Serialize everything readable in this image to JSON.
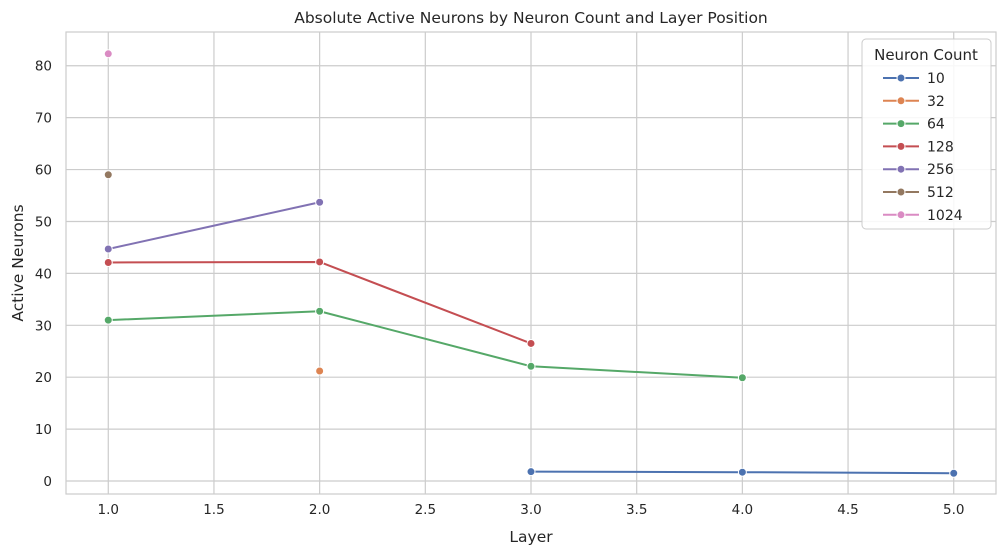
{
  "chart_data": {
    "type": "line",
    "title": "Absolute Active Neurons by Neuron Count and Layer Position",
    "xlabel": "Layer",
    "ylabel": "Active Neurons",
    "xlim": [
      0.8,
      5.2
    ],
    "ylim": [
      -2.5,
      86.5
    ],
    "xticks": [
      1.0,
      1.5,
      2.0,
      2.5,
      3.0,
      3.5,
      4.0,
      4.5,
      5.0
    ],
    "xtick_labels": [
      "1.0",
      "1.5",
      "2.0",
      "2.5",
      "3.0",
      "3.5",
      "4.0",
      "4.5",
      "5.0"
    ],
    "yticks": [
      0,
      10,
      20,
      30,
      40,
      50,
      60,
      70,
      80
    ],
    "ytick_labels": [
      "0",
      "10",
      "20",
      "30",
      "40",
      "50",
      "60",
      "70",
      "80"
    ],
    "grid": true,
    "legend_title": "Neuron Count",
    "legend_position": "top-right",
    "series": [
      {
        "name": "10",
        "color": "#4c72b0",
        "x": [
          3,
          4,
          5
        ],
        "y": [
          1.8,
          1.7,
          1.5
        ]
      },
      {
        "name": "32",
        "color": "#dd8452",
        "x": [
          2
        ],
        "y": [
          21.2
        ]
      },
      {
        "name": "64",
        "color": "#55a868",
        "x": [
          1,
          2,
          3,
          4
        ],
        "y": [
          31.0,
          32.7,
          22.1,
          19.9
        ]
      },
      {
        "name": "128",
        "color": "#c44e52",
        "x": [
          1,
          2,
          3
        ],
        "y": [
          42.1,
          42.2,
          26.5
        ]
      },
      {
        "name": "256",
        "color": "#8172b3",
        "x": [
          1,
          2
        ],
        "y": [
          44.7,
          53.7
        ]
      },
      {
        "name": "512",
        "color": "#937860",
        "x": [
          1
        ],
        "y": [
          59.0
        ]
      },
      {
        "name": "1024",
        "color": "#da8bc3",
        "x": [
          1
        ],
        "y": [
          82.3
        ]
      }
    ]
  }
}
